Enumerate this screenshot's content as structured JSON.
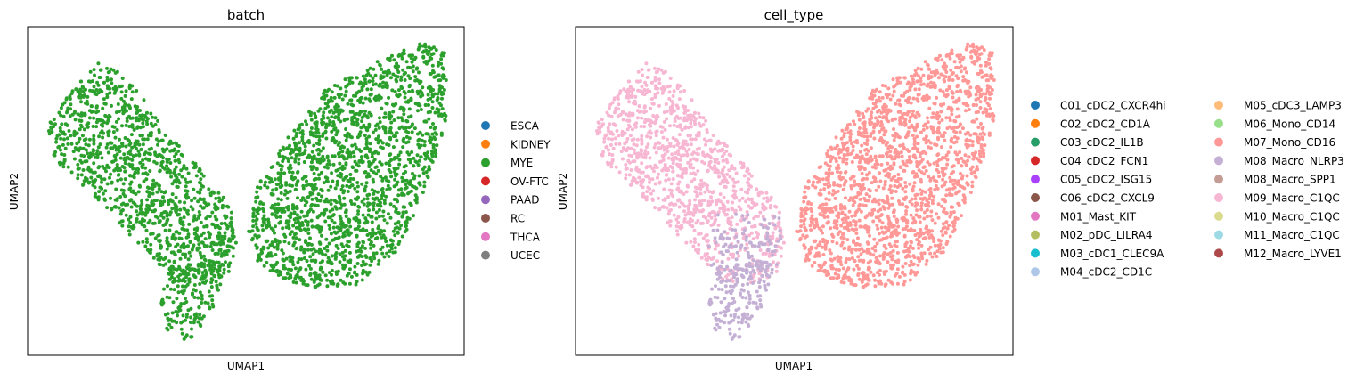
{
  "chart_data": [
    {
      "type": "scatter",
      "title": "batch",
      "xlabel": "UMAP1",
      "ylabel": "UMAP2",
      "grid": false,
      "legend_placement": "right",
      "legend": [
        {
          "label": "ESCA",
          "color": "#1f77b4"
        },
        {
          "label": "KIDNEY",
          "color": "#ff7f0e"
        },
        {
          "label": "MYE",
          "color": "#2ca02c"
        },
        {
          "label": "OV-FTC",
          "color": "#d62728"
        },
        {
          "label": "PAAD",
          "color": "#9467bd"
        },
        {
          "label": "RC",
          "color": "#8c564b"
        },
        {
          "label": "THCA",
          "color": "#e377c2"
        },
        {
          "label": "UCEC",
          "color": "#7f7f7f"
        }
      ]
    },
    {
      "type": "scatter",
      "title": "cell_type",
      "xlabel": "UMAP1",
      "ylabel": "UMAP2",
      "grid": false,
      "legend_placement": "right",
      "legend": [
        {
          "label": "C01_cDC2_CXCR4hi",
          "color": "#1f77b4"
        },
        {
          "label": "C02_cDC2_CD1A",
          "color": "#ff7f0e"
        },
        {
          "label": "C03_cDC2_IL1B",
          "color": "#279e68"
        },
        {
          "label": "C04_cDC2_FCN1",
          "color": "#d62728"
        },
        {
          "label": "C05_cDC2_ISG15",
          "color": "#aa40fc"
        },
        {
          "label": "C06_cDC2_CXCL9",
          "color": "#8c564b"
        },
        {
          "label": "M01_Mast_KIT",
          "color": "#e377c2"
        },
        {
          "label": "M02_pDC_LILRA4",
          "color": "#b5bd61"
        },
        {
          "label": "M03_cDC1_CLEC9A",
          "color": "#17becf"
        },
        {
          "label": "M04_cDC2_CD1C",
          "color": "#aec7e8"
        },
        {
          "label": "M05_cDC3_LAMP3",
          "color": "#ffbb78"
        },
        {
          "label": "M06_Mono_CD14",
          "color": "#98df8a"
        },
        {
          "label": "M07_Mono_CD16",
          "color": "#ff9896"
        },
        {
          "label": "M08_Macro_NLRP3",
          "color": "#c5b0d5"
        },
        {
          "label": "M08_Macro_SPP1",
          "color": "#c49c94"
        },
        {
          "label": "M09_Macro_C1QC",
          "color": "#f7b6d2"
        },
        {
          "label": "M10_Macro_C1QC",
          "color": "#dbdb8d"
        },
        {
          "label": "M11_Macro_C1QC",
          "color": "#9edae5"
        },
        {
          "label": "M12_Macro_LYVE1",
          "color": "#ad494a"
        }
      ],
      "point_colors": {
        "left_cluster": "#f7b6d2",
        "left_tail": "#c5b0d5",
        "right_cluster": "#ff9896"
      }
    }
  ]
}
